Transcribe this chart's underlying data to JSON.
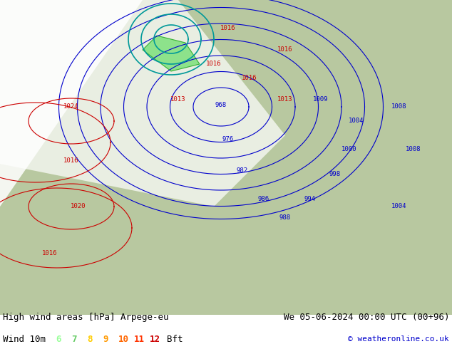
{
  "title_left": "High wind areas [hPa] Arpege-eu",
  "title_right": "We 05-06-2024 00:00 UTC (00+96)",
  "legend_label": "Wind 10m",
  "legend_numbers": [
    "6",
    "7",
    "8",
    "9",
    "10",
    "11",
    "12"
  ],
  "legend_colors": [
    "#99ff99",
    "#66cc66",
    "#ffcc00",
    "#ff9900",
    "#ff6600",
    "#ff3300",
    "#cc0000"
  ],
  "legend_unit": "Bft",
  "copyright": "© weatheronline.co.uk",
  "bg_color": "#b8c8a0",
  "map_bg": "#c8d8b0",
  "text_color": "#000000",
  "title_font_size": 9,
  "legend_font_size": 9,
  "figsize": [
    6.34,
    4.9
  ],
  "dpi": 100
}
